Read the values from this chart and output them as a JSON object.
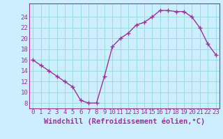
{
  "x": [
    0,
    1,
    2,
    3,
    4,
    5,
    6,
    7,
    8,
    9,
    10,
    11,
    12,
    13,
    14,
    15,
    16,
    17,
    18,
    19,
    20,
    21,
    22,
    23
  ],
  "y": [
    16,
    15,
    14,
    13,
    12,
    11,
    8.5,
    8,
    8,
    13,
    18.5,
    20,
    21,
    22.5,
    23,
    24,
    25.2,
    25.2,
    25,
    25,
    24,
    22,
    19,
    17
  ],
  "line_color": "#993399",
  "marker": "+",
  "bg_color": "#cceeff",
  "grid_color": "#99dddd",
  "axis_color": "#993399",
  "xlabel": "Windchill (Refroidissement éolien,°C)",
  "xlim": [
    -0.5,
    23.5
  ],
  "ylim": [
    7,
    26.5
  ],
  "yticks": [
    8,
    10,
    12,
    14,
    16,
    18,
    20,
    22,
    24
  ],
  "xticks": [
    0,
    1,
    2,
    3,
    4,
    5,
    6,
    7,
    8,
    9,
    10,
    11,
    12,
    13,
    14,
    15,
    16,
    17,
    18,
    19,
    20,
    21,
    22,
    23
  ],
  "tick_fontsize": 6.5,
  "label_fontsize": 7.5
}
